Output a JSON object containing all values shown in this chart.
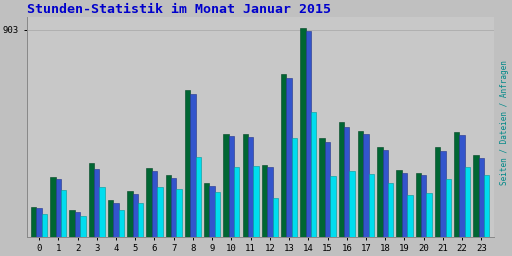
{
  "title": "Stunden-Statistik im Monat Januar 2015",
  "title_color": "#0000cc",
  "title_fontsize": 9.5,
  "background_color": "#c0c0c0",
  "plot_bg_color": "#c8c8c8",
  "ytick_label": "903",
  "hours": [
    0,
    1,
    2,
    3,
    4,
    5,
    6,
    7,
    8,
    9,
    10,
    11,
    12,
    13,
    14,
    15,
    16,
    17,
    18,
    19,
    20,
    21,
    22,
    23
  ],
  "seiten": [
    130,
    260,
    115,
    320,
    160,
    200,
    300,
    270,
    640,
    235,
    450,
    450,
    315,
    710,
    910,
    430,
    500,
    460,
    390,
    290,
    280,
    390,
    455,
    355
  ],
  "dateien": [
    125,
    252,
    108,
    295,
    148,
    188,
    285,
    258,
    625,
    220,
    438,
    436,
    302,
    695,
    900,
    415,
    480,
    447,
    377,
    278,
    268,
    375,
    443,
    343
  ],
  "anfragen": [
    100,
    205,
    88,
    215,
    115,
    148,
    215,
    210,
    350,
    195,
    305,
    308,
    170,
    430,
    545,
    265,
    288,
    275,
    235,
    182,
    190,
    252,
    306,
    268
  ],
  "color_seiten": "#006633",
  "color_dateien": "#3355cc",
  "color_anfragen": "#00ddee",
  "color_seiten_edge": "#004422",
  "color_dateien_edge": "#223388",
  "color_anfragen_edge": "#009999",
  "ylim_max": 960,
  "grid_color": "#b0b0b0",
  "bar_width": 0.28,
  "ylabel_color1": "#008888",
  "ylabel_color2": "#00aaaa"
}
